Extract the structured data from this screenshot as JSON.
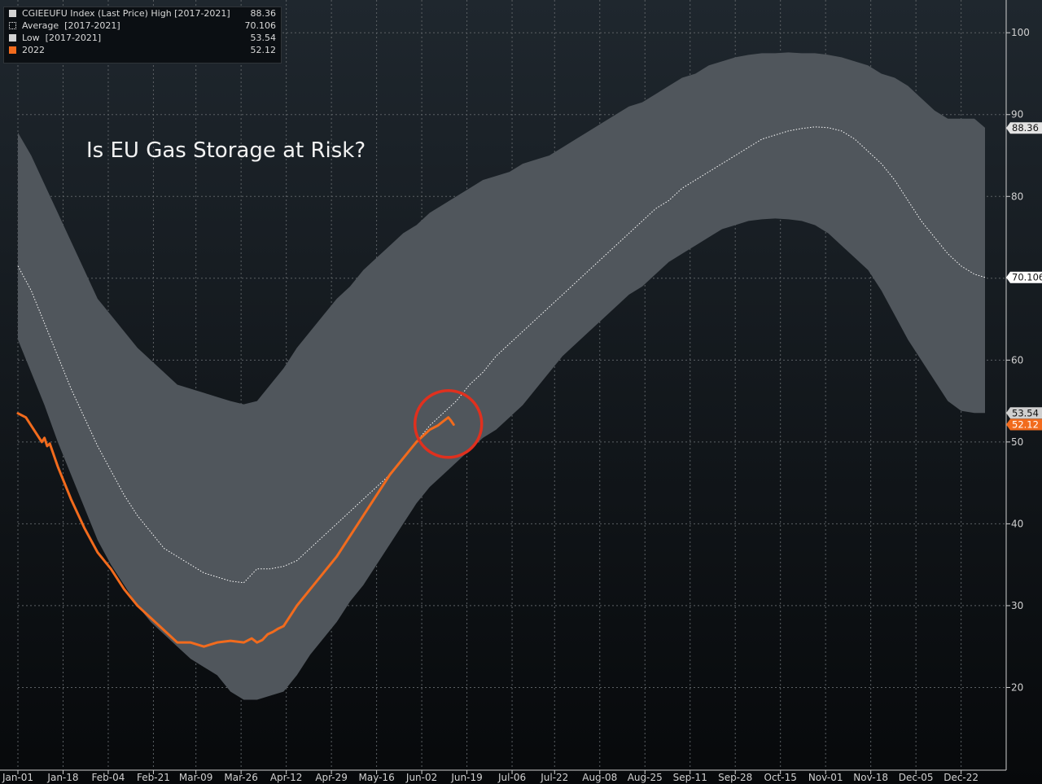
{
  "chart_data": {
    "type": "area",
    "title": "Is EU Gas Storage at Risk?",
    "xlabel": "",
    "ylabel": "",
    "ylim": [
      10,
      104
    ],
    "yticks": [
      20,
      30,
      40,
      50,
      60,
      70,
      80,
      90,
      100
    ],
    "xlim": [
      0,
      364
    ],
    "xtick_labels": [
      "Jan-01",
      "Jan-18",
      "Feb-04",
      "Feb-21",
      "Mar-09",
      "Mar-26",
      "Apr-12",
      "Apr-29",
      "May-16",
      "Jun-02",
      "Jun-19",
      "Jul-06",
      "Jul-22",
      "Aug-08",
      "Aug-25",
      "Sep-11",
      "Sep-28",
      "Oct-15",
      "Nov-01",
      "Nov-18",
      "Dec-05",
      "Dec-22"
    ],
    "xtick_days": [
      0,
      17,
      34,
      51,
      67,
      84,
      101,
      118,
      135,
      152,
      169,
      186,
      202,
      219,
      236,
      253,
      270,
      287,
      304,
      321,
      338,
      355
    ],
    "grid": true,
    "legend_position": "top-left",
    "legend": [
      {
        "label": "CGIEEUFU Index (Last Price) High [2017-2021]",
        "value": "88.36",
        "color": "#d3d3d3",
        "style": "fill"
      },
      {
        "label": "Average  [2017-2021]",
        "value": "70.106",
        "color": "#ffffff",
        "style": "dotted"
      },
      {
        "label": "Low  [2017-2021]",
        "value": "53.54",
        "color": "#d3d3d3",
        "style": "fill"
      },
      {
        "label": "2022",
        "value": "52.12",
        "color": "#f26b1d",
        "style": "fill"
      }
    ],
    "axis_badges": [
      {
        "value": 88.36,
        "text": "88.36",
        "bg": "#e3e3e3",
        "fg": "#111111"
      },
      {
        "value": 70.106,
        "text": "70.106",
        "bg": "#ffffff",
        "fg": "#111111"
      },
      {
        "value": 53.54,
        "text": "53.54",
        "bg": "#cfcfcf",
        "fg": "#111111"
      },
      {
        "value": 52.12,
        "text": "52.12",
        "bg": "#f26b1d",
        "fg": "#ffffff"
      }
    ],
    "annotation": {
      "type": "circle",
      "day": 162,
      "value": 52,
      "color": "#e0301e"
    },
    "series": [
      {
        "name": "High [2017-2021]",
        "color": "#50565c",
        "x": [
          0,
          5,
          10,
          15,
          20,
          25,
          30,
          35,
          40,
          45,
          50,
          55,
          60,
          65,
          70,
          75,
          80,
          85,
          90,
          95,
          100,
          105,
          110,
          115,
          120,
          125,
          130,
          135,
          140,
          145,
          150,
          155,
          160,
          165,
          170,
          175,
          180,
          185,
          190,
          195,
          200,
          205,
          210,
          215,
          220,
          225,
          230,
          235,
          240,
          245,
          250,
          255,
          260,
          265,
          270,
          275,
          280,
          285,
          290,
          295,
          300,
          305,
          310,
          315,
          320,
          325,
          330,
          335,
          340,
          345,
          350,
          355,
          360,
          364
        ],
        "values": [
          87.8,
          85.0,
          81.5,
          78.0,
          74.5,
          71.0,
          67.5,
          65.5,
          63.5,
          61.5,
          60.0,
          58.5,
          57.0,
          56.5,
          56.0,
          55.5,
          55.0,
          54.6,
          55.0,
          57.0,
          59.0,
          61.5,
          63.5,
          65.5,
          67.5,
          69.0,
          71.0,
          72.5,
          74.0,
          75.5,
          76.5,
          78.0,
          79.0,
          80.0,
          81.0,
          82.0,
          82.5,
          83.0,
          84.0,
          84.5,
          85.0,
          86.0,
          87.0,
          88.0,
          89.0,
          90.0,
          91.0,
          91.5,
          92.5,
          93.5,
          94.5,
          95.0,
          96.0,
          96.5,
          97.0,
          97.3,
          97.5,
          97.5,
          97.6,
          97.5,
          97.5,
          97.3,
          97.0,
          96.5,
          96.0,
          95.0,
          94.5,
          93.5,
          92.0,
          90.5,
          89.5,
          89.5,
          89.5,
          88.4
        ]
      },
      {
        "name": "Low [2017-2021]",
        "color": "#50565c",
        "x": [
          0,
          5,
          10,
          15,
          20,
          25,
          30,
          35,
          40,
          45,
          50,
          55,
          60,
          65,
          70,
          75,
          80,
          85,
          90,
          95,
          100,
          105,
          110,
          115,
          120,
          125,
          130,
          135,
          140,
          145,
          150,
          155,
          160,
          165,
          170,
          175,
          180,
          185,
          190,
          195,
          200,
          205,
          210,
          215,
          220,
          225,
          230,
          235,
          240,
          245,
          250,
          255,
          260,
          265,
          270,
          275,
          280,
          285,
          290,
          295,
          300,
          305,
          310,
          315,
          320,
          325,
          330,
          335,
          340,
          345,
          350,
          355,
          360,
          364
        ],
        "values": [
          62.5,
          58.5,
          54.5,
          50.0,
          46.0,
          42.0,
          38.0,
          35.0,
          32.5,
          30.0,
          28.0,
          26.5,
          25.0,
          23.5,
          22.5,
          21.5,
          19.5,
          18.5,
          18.5,
          19.0,
          19.5,
          21.5,
          24.0,
          26.0,
          28.0,
          30.5,
          32.5,
          35.0,
          37.5,
          40.0,
          42.5,
          44.5,
          46.0,
          47.5,
          49.0,
          50.5,
          51.5,
          53.0,
          54.5,
          56.5,
          58.5,
          60.5,
          62.0,
          63.5,
          65.0,
          66.5,
          68.0,
          69.0,
          70.5,
          72.0,
          73.0,
          74.0,
          75.0,
          76.0,
          76.5,
          77.0,
          77.2,
          77.3,
          77.2,
          77.0,
          76.5,
          75.5,
          74.0,
          72.5,
          71.0,
          68.5,
          65.5,
          62.5,
          60.0,
          57.5,
          55.0,
          53.8,
          53.54,
          53.54
        ]
      },
      {
        "name": "Average [2017-2021]",
        "color": "#ffffff",
        "x": [
          0,
          5,
          10,
          15,
          20,
          25,
          30,
          35,
          40,
          45,
          50,
          55,
          60,
          65,
          70,
          75,
          80,
          85,
          90,
          95,
          100,
          105,
          110,
          115,
          120,
          125,
          130,
          135,
          140,
          145,
          150,
          155,
          160,
          165,
          170,
          175,
          180,
          185,
          190,
          195,
          200,
          205,
          210,
          215,
          220,
          225,
          230,
          235,
          240,
          245,
          250,
          255,
          260,
          265,
          270,
          275,
          280,
          285,
          290,
          295,
          300,
          305,
          310,
          315,
          320,
          325,
          330,
          335,
          340,
          345,
          350,
          355,
          360,
          364
        ],
        "values": [
          71.5,
          68.5,
          64.5,
          60.5,
          56.5,
          53.0,
          49.5,
          46.5,
          43.5,
          41.0,
          39.0,
          37.0,
          36.0,
          35.0,
          34.0,
          33.5,
          33.0,
          32.8,
          34.5,
          34.5,
          34.8,
          35.5,
          37.0,
          38.5,
          40.0,
          41.5,
          43.0,
          44.5,
          46.0,
          48.0,
          50.0,
          52.0,
          53.5,
          55.0,
          57.0,
          58.5,
          60.5,
          62.0,
          63.5,
          65.0,
          66.5,
          68.0,
          69.5,
          71.0,
          72.5,
          74.0,
          75.5,
          77.0,
          78.5,
          79.5,
          81.0,
          82.0,
          83.0,
          84.0,
          85.0,
          86.0,
          87.0,
          87.5,
          88.0,
          88.3,
          88.5,
          88.4,
          88.0,
          87.0,
          85.5,
          84.0,
          82.0,
          79.5,
          77.0,
          75.0,
          73.0,
          71.5,
          70.5,
          70.106
        ]
      },
      {
        "name": "2022",
        "color": "#f26b1d",
        "x": [
          0,
          3,
          6,
          9,
          10,
          11,
          12,
          15,
          20,
          25,
          30,
          35,
          40,
          45,
          50,
          55,
          60,
          65,
          70,
          75,
          80,
          85,
          88,
          90,
          92,
          94,
          96,
          98,
          100,
          102,
          105,
          110,
          115,
          120,
          125,
          130,
          135,
          140,
          145,
          150,
          155,
          158,
          160,
          162,
          163,
          164
        ],
        "values": [
          53.5,
          53.0,
          51.5,
          50.0,
          50.5,
          49.5,
          49.8,
          47.0,
          43.0,
          39.5,
          36.5,
          34.5,
          32.0,
          30.0,
          28.5,
          27.0,
          25.5,
          25.5,
          25.0,
          25.5,
          25.7,
          25.5,
          26.0,
          25.5,
          25.8,
          26.5,
          26.8,
          27.2,
          27.5,
          28.5,
          30.0,
          32.0,
          34.0,
          36.0,
          38.5,
          41.0,
          43.5,
          46.0,
          48.0,
          50.0,
          51.5,
          52.0,
          52.5,
          53.0,
          52.6,
          52.12
        ]
      }
    ]
  }
}
